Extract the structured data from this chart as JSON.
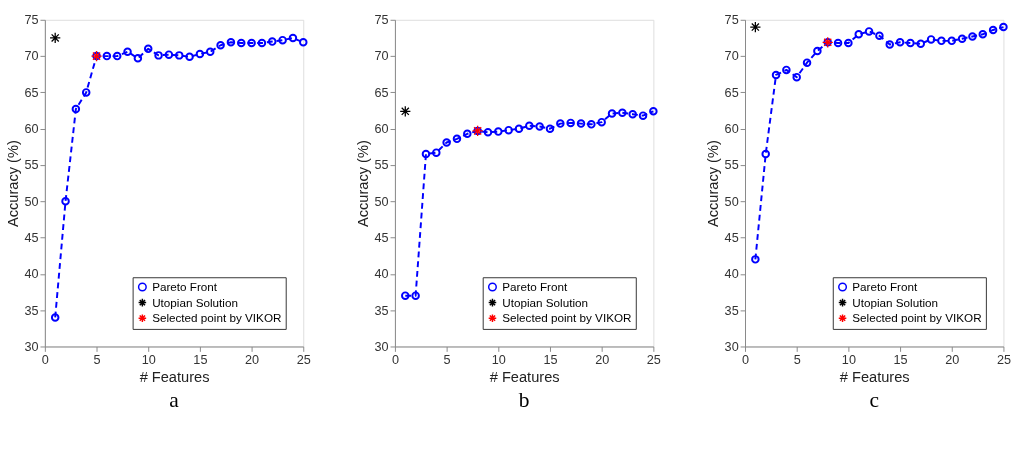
{
  "chart_data": [
    {
      "type": "line",
      "xlabel": "# Features",
      "ylabel": "Accuracy (%)",
      "annotations": [
        "a"
      ],
      "xlim": [
        0,
        25
      ],
      "xticks": [
        0,
        5,
        10,
        15,
        20,
        25
      ],
      "ylim": [
        30,
        75
      ],
      "yticks": [
        30,
        35,
        40,
        45,
        50,
        55,
        60,
        65,
        70,
        75
      ],
      "grid": false,
      "legend": "bottom right",
      "series": [
        {
          "name": "Pareto Front",
          "color": "#0000ff",
          "marker": "circle",
          "line_style": "dashed",
          "x": [
            1,
            2,
            3,
            4,
            5,
            6,
            7,
            8,
            9,
            10,
            11,
            12,
            13,
            14,
            15,
            16,
            17,
            18,
            19,
            20,
            21,
            22,
            23,
            24,
            25
          ],
          "values": [
            34,
            50,
            62.7,
            65,
            70,
            70,
            70,
            70.6,
            69.7,
            71,
            70.1,
            70.2,
            70.1,
            69.9,
            70.3,
            70.6,
            71.5,
            71.9,
            71.8,
            71.8,
            71.8,
            72,
            72.2,
            72.5,
            71.9
          ]
        },
        {
          "name": "Utopian Solution",
          "type": "scatter",
          "color": "#000000",
          "marker": "cross",
          "x": [
            1
          ],
          "values": [
            72.5
          ]
        },
        {
          "name": "Selected point by VIKOR",
          "type": "scatter",
          "color": "#ff0000",
          "marker": "cross",
          "x": [
            5
          ],
          "values": [
            70
          ]
        }
      ]
    },
    {
      "type": "line",
      "xlabel": "# Features",
      "ylabel": "Accuracy (%)",
      "annotations": [
        "b"
      ],
      "xlim": [
        0,
        25
      ],
      "xticks": [
        0,
        5,
        10,
        15,
        20,
        25
      ],
      "ylim": [
        30,
        75
      ],
      "yticks": [
        30,
        35,
        40,
        45,
        50,
        55,
        60,
        65,
        70,
        75
      ],
      "grid": false,
      "legend": "bottom right",
      "series": [
        {
          "name": "Pareto Front",
          "color": "#0000ff",
          "marker": "circle",
          "line_style": "dashed",
          "x": [
            1,
            2,
            3,
            4,
            5,
            6,
            7,
            8,
            9,
            10,
            11,
            12,
            13,
            14,
            15,
            16,
            17,
            18,
            19,
            20,
            21,
            22,
            23,
            24,
            25
          ],
          "values": [
            37,
            37,
            56.5,
            56.7,
            58.1,
            58.6,
            59.3,
            59.7,
            59.5,
            59.6,
            59.8,
            60,
            60.4,
            60.3,
            60,
            60.7,
            60.8,
            60.7,
            60.6,
            60.9,
            62.1,
            62.2,
            62,
            61.8,
            62.4
          ]
        },
        {
          "name": "Utopian Solution",
          "type": "scatter",
          "color": "#000000",
          "marker": "cross",
          "x": [
            1
          ],
          "values": [
            62.4
          ]
        },
        {
          "name": "Selected point by VIKOR",
          "type": "scatter",
          "color": "#ff0000",
          "marker": "cross",
          "x": [
            8
          ],
          "values": [
            59.7
          ]
        }
      ]
    },
    {
      "type": "line",
      "xlabel": "# Features",
      "ylabel": "Accuracy (%)",
      "annotations": [
        "c"
      ],
      "xlim": [
        0,
        25
      ],
      "xticks": [
        0,
        5,
        10,
        15,
        20,
        25
      ],
      "ylim": [
        30,
        75
      ],
      "yticks": [
        30,
        35,
        40,
        45,
        50,
        55,
        60,
        65,
        70,
        75
      ],
      "grid": false,
      "legend": "bottom right",
      "series": [
        {
          "name": "Pareto Front",
          "color": "#0000ff",
          "marker": "circle",
          "line_style": "dashed",
          "x": [
            1,
            2,
            3,
            4,
            5,
            6,
            7,
            8,
            9,
            10,
            11,
            12,
            13,
            14,
            15,
            16,
            17,
            18,
            19,
            20,
            21,
            22,
            23,
            24,
            25
          ],
          "values": [
            42,
            56.5,
            67.4,
            68.1,
            67.1,
            69.1,
            70.7,
            71.9,
            71.8,
            71.8,
            73,
            73.4,
            72.8,
            71.6,
            71.9,
            71.8,
            71.7,
            72.3,
            72.1,
            72.1,
            72.4,
            72.7,
            73,
            73.6,
            74
          ]
        },
        {
          "name": "Utopian Solution",
          "type": "scatter",
          "color": "#000000",
          "marker": "cross",
          "x": [
            1
          ],
          "values": [
            74
          ]
        },
        {
          "name": "Selected point by VIKOR",
          "type": "scatter",
          "color": "#ff0000",
          "marker": "cross",
          "x": [
            8
          ],
          "values": [
            71.9
          ]
        }
      ]
    }
  ]
}
